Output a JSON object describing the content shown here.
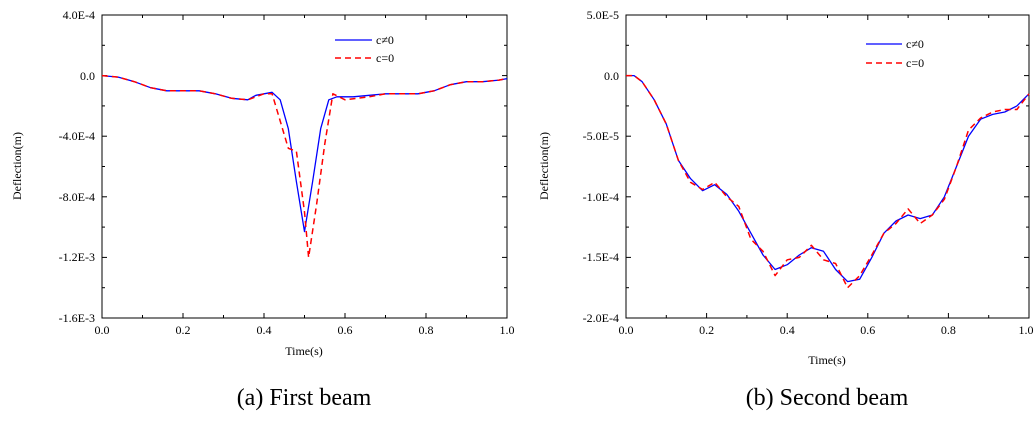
{
  "colors": {
    "series_c_neq_0": "#0000ff",
    "series_c_eq_0": "#ff0000"
  },
  "chart_data": [
    {
      "type": "line",
      "caption": "(a) First beam",
      "xlabel": "Time(s)",
      "ylabel": "Deflection(m)",
      "xlim": [
        0.0,
        1.0
      ],
      "ylim": [
        -0.0016,
        0.0004
      ],
      "xticks": [
        0.0,
        0.2,
        0.4,
        0.6,
        0.8,
        1.0
      ],
      "xtick_labels": [
        "0.0",
        "0.2",
        "0.4",
        "0.6",
        "0.8",
        "1.0"
      ],
      "yticks": [
        0.0004,
        0.0,
        -0.0004,
        -0.0008,
        -0.0012,
        -0.0016
      ],
      "ytick_labels": [
        "4.0E-4",
        "0.0",
        "-4.0E-4",
        "-8.0E-4",
        "-1.2E-3",
        "-1.6E-3"
      ],
      "legend_position": "top-right",
      "series": [
        {
          "name": "c≠0",
          "style": "solid",
          "color": "#0000ff",
          "x": [
            0.0,
            0.04,
            0.08,
            0.12,
            0.16,
            0.2,
            0.24,
            0.28,
            0.32,
            0.36,
            0.38,
            0.4,
            0.42,
            0.44,
            0.46,
            0.48,
            0.5,
            0.52,
            0.54,
            0.56,
            0.58,
            0.62,
            0.66,
            0.7,
            0.74,
            0.78,
            0.82,
            0.86,
            0.9,
            0.94,
            0.98,
            1.0
          ],
          "y": [
            0.0,
            -1e-05,
            -4e-05,
            -8e-05,
            -0.0001,
            -0.0001,
            -0.0001,
            -0.00012,
            -0.00015,
            -0.00016,
            -0.00013,
            -0.00012,
            -0.00011,
            -0.00016,
            -0.00035,
            -0.0007,
            -0.00103,
            -0.0007,
            -0.00035,
            -0.00016,
            -0.00014,
            -0.00014,
            -0.00013,
            -0.00012,
            -0.00012,
            -0.00012,
            -0.0001,
            -6e-05,
            -4e-05,
            -4e-05,
            -3e-05,
            -2e-05
          ]
        },
        {
          "name": "c=0",
          "style": "dashed",
          "color": "#ff0000",
          "x": [
            0.0,
            0.04,
            0.08,
            0.12,
            0.16,
            0.2,
            0.24,
            0.28,
            0.32,
            0.36,
            0.38,
            0.4,
            0.42,
            0.44,
            0.46,
            0.48,
            0.5,
            0.51,
            0.53,
            0.55,
            0.57,
            0.6,
            0.66,
            0.7,
            0.74,
            0.78,
            0.82,
            0.86,
            0.9,
            0.94,
            0.98,
            1.0
          ],
          "y": [
            0.0,
            -1e-05,
            -4e-05,
            -8e-05,
            -0.0001,
            -0.0001,
            -0.0001,
            -0.00012,
            -0.00015,
            -0.00016,
            -0.00014,
            -0.00012,
            -0.00012,
            -0.0003,
            -0.00048,
            -0.0005,
            -0.0009,
            -0.0012,
            -0.00085,
            -0.00045,
            -0.00012,
            -0.00016,
            -0.00014,
            -0.00012,
            -0.00012,
            -0.00012,
            -0.0001,
            -6e-05,
            -4e-05,
            -4e-05,
            -3e-05,
            -2e-05
          ]
        }
      ]
    },
    {
      "type": "line",
      "caption": "(b) Second beam",
      "xlabel": "Time(s)",
      "ylabel": "Deflection(m)",
      "xlim": [
        0.0,
        1.0
      ],
      "ylim": [
        -0.0002,
        5e-05
      ],
      "xticks": [
        0.0,
        0.2,
        0.4,
        0.6,
        0.8,
        1.0
      ],
      "xtick_labels": [
        "0.0",
        "0.2",
        "0.4",
        "0.6",
        "0.8",
        "1.0"
      ],
      "yticks": [
        5e-05,
        0.0,
        -5e-05,
        -0.0001,
        -0.00015,
        -0.0002
      ],
      "ytick_labels": [
        "5.0E-5",
        "0.0",
        "-5.0E-5",
        "-1.0E-4",
        "-1.5E-4",
        "-2.0E-4"
      ],
      "legend_position": "top-right",
      "series": [
        {
          "name": "c≠0",
          "style": "solid",
          "color": "#0000ff",
          "x": [
            0.0,
            0.02,
            0.04,
            0.07,
            0.1,
            0.13,
            0.16,
            0.19,
            0.22,
            0.25,
            0.28,
            0.31,
            0.34,
            0.37,
            0.4,
            0.43,
            0.46,
            0.49,
            0.52,
            0.55,
            0.58,
            0.61,
            0.64,
            0.67,
            0.7,
            0.73,
            0.76,
            0.79,
            0.82,
            0.85,
            0.88,
            0.91,
            0.94,
            0.97,
            1.0
          ],
          "y": [
            0.0,
            0.0,
            -5e-06,
            -2e-05,
            -4e-05,
            -7e-05,
            -8.5e-05,
            -9.5e-05,
            -9e-05,
            -9.8e-05,
            -0.000112,
            -0.00013,
            -0.000148,
            -0.00016,
            -0.000156,
            -0.000148,
            -0.000142,
            -0.000145,
            -0.00016,
            -0.00017,
            -0.000168,
            -0.00015,
            -0.00013,
            -0.00012,
            -0.000115,
            -0.000118,
            -0.000115,
            -0.0001,
            -7.5e-05,
            -5e-05,
            -3.6e-05,
            -3.2e-05,
            -3e-05,
            -2.5e-05,
            -1.5e-05
          ]
        },
        {
          "name": "c=0",
          "style": "dashed",
          "color": "#ff0000",
          "x": [
            0.0,
            0.02,
            0.04,
            0.07,
            0.1,
            0.13,
            0.16,
            0.19,
            0.22,
            0.25,
            0.28,
            0.31,
            0.34,
            0.37,
            0.4,
            0.43,
            0.46,
            0.49,
            0.52,
            0.55,
            0.58,
            0.61,
            0.64,
            0.67,
            0.7,
            0.73,
            0.76,
            0.79,
            0.82,
            0.85,
            0.88,
            0.91,
            0.94,
            0.97,
            1.0
          ],
          "y": [
            0.0,
            0.0,
            -5e-06,
            -2e-05,
            -4e-05,
            -7e-05,
            -8.8e-05,
            -9.4e-05,
            -8.8e-05,
            -0.0001,
            -0.000108,
            -0.000135,
            -0.000145,
            -0.000165,
            -0.000152,
            -0.00015,
            -0.00014,
            -0.000152,
            -0.000155,
            -0.000175,
            -0.000165,
            -0.000148,
            -0.00013,
            -0.000122,
            -0.00011,
            -0.000122,
            -0.000115,
            -0.000102,
            -7.5e-05,
            -4.5e-05,
            -3.5e-05,
            -3e-05,
            -2.8e-05,
            -2.8e-05,
            -1.5e-05
          ]
        }
      ]
    }
  ]
}
